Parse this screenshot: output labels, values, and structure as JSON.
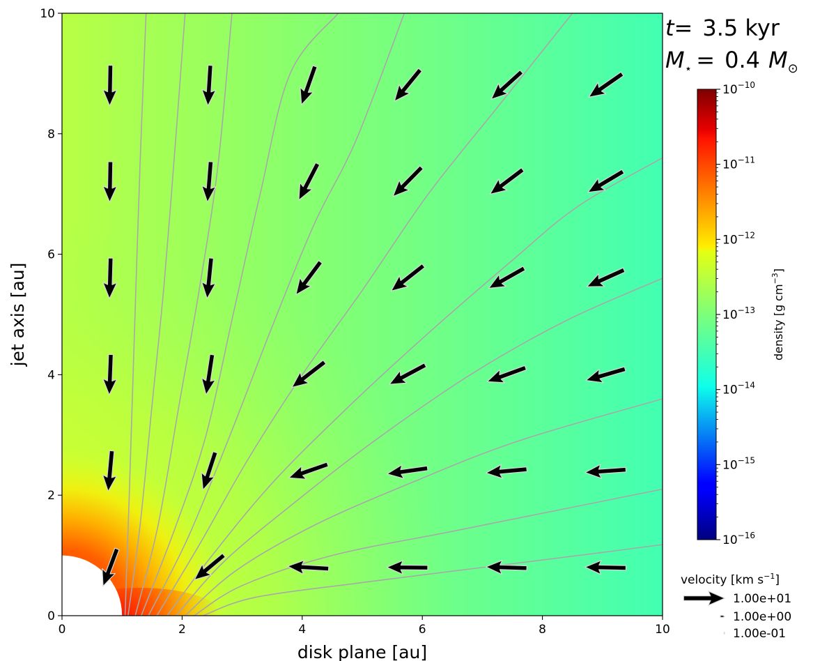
{
  "chart_data": {
    "type": "quiver-streamplot",
    "xlabel": "disk plane [au]",
    "ylabel": "jet axis [au]",
    "xlim": [
      0,
      10
    ],
    "ylim": [
      0,
      10
    ],
    "x_ticks": [
      0,
      2,
      4,
      6,
      8,
      10
    ],
    "y_ticks": [
      0,
      2,
      4,
      6,
      8,
      10
    ],
    "x_tick_labels": [
      "0",
      "2",
      "4",
      "6",
      "8",
      "10"
    ],
    "y_tick_labels": [
      "0",
      "2",
      "4",
      "6",
      "8",
      "10"
    ],
    "annotation_time": {
      "prefix": "t",
      "eq": "=",
      "value": "3.5 kyr"
    },
    "annotation_mass": {
      "prefix": "M",
      "sub": "⋆",
      "eq": "=",
      "value": "0.4",
      "unit": "M",
      "unit_sub": "⊙"
    },
    "colorbar": {
      "label_pre": "density [g cm",
      "label_sup": "−3",
      "label_post": "]",
      "scale": "log",
      "range_exp": [
        -16,
        -10
      ],
      "ticks": [
        {
          "exp": -10,
          "base": "10",
          "sup": "−10"
        },
        {
          "exp": -11,
          "base": "10",
          "sup": "−11"
        },
        {
          "exp": -12,
          "base": "10",
          "sup": "−12"
        },
        {
          "exp": -13,
          "base": "10",
          "sup": "−13"
        },
        {
          "exp": -14,
          "base": "10",
          "sup": "−14"
        },
        {
          "exp": -15,
          "base": "10",
          "sup": "−15"
        },
        {
          "exp": -16,
          "base": "10",
          "sup": "−16"
        }
      ],
      "colormap": "jet"
    },
    "density_field": {
      "inner_boundary_radius": 1.0,
      "background_log_density_range": [
        -13.7,
        -12.4
      ],
      "peak_log_density_near_disk": -11.3
    },
    "velocity_legend": {
      "title_pre": "velocity [km s",
      "title_sup": "−1",
      "title_post": "]",
      "entries": [
        {
          "value": 10.0,
          "label": "1.00e+01"
        },
        {
          "value": 1.0,
          "label": "1.00e+00"
        },
        {
          "value": 0.1,
          "label": "1.00e-01"
        }
      ]
    },
    "arrow_reference_length_au": 0.68,
    "arrow_reference_value": 10.0,
    "arrows": [
      {
        "x": 0.8,
        "y": 0.8,
        "u": -3.4,
        "v": -9.1
      },
      {
        "x": 0.8,
        "y": 2.4,
        "u": -0.9,
        "v": -9.9
      },
      {
        "x": 0.8,
        "y": 4.0,
        "u": -0.4,
        "v": -9.9
      },
      {
        "x": 0.8,
        "y": 5.6,
        "u": -0.3,
        "v": -9.9
      },
      {
        "x": 0.8,
        "y": 7.2,
        "u": -0.2,
        "v": -9.9
      },
      {
        "x": 0.8,
        "y": 8.8,
        "u": -0.2,
        "v": -9.9
      },
      {
        "x": 2.45,
        "y": 0.8,
        "u": -7.2,
        "v": -6.0
      },
      {
        "x": 2.45,
        "y": 2.4,
        "u": -3.0,
        "v": -9.2
      },
      {
        "x": 2.45,
        "y": 4.0,
        "u": -1.5,
        "v": -9.8
      },
      {
        "x": 2.45,
        "y": 5.6,
        "u": -1.0,
        "v": -9.9
      },
      {
        "x": 2.45,
        "y": 7.2,
        "u": -0.8,
        "v": -9.9
      },
      {
        "x": 2.45,
        "y": 8.8,
        "u": -0.6,
        "v": -9.9
      },
      {
        "x": 4.1,
        "y": 0.8,
        "u": -10.0,
        "v": 0.6
      },
      {
        "x": 4.1,
        "y": 2.4,
        "u": -9.5,
        "v": -3.3
      },
      {
        "x": 4.1,
        "y": 4.0,
        "u": -8.0,
        "v": -6.2
      },
      {
        "x": 4.1,
        "y": 5.6,
        "u": -6.0,
        "v": -8.0
      },
      {
        "x": 4.1,
        "y": 7.2,
        "u": -4.6,
        "v": -8.9
      },
      {
        "x": 4.1,
        "y": 8.8,
        "u": -3.3,
        "v": -9.4
      },
      {
        "x": 5.75,
        "y": 0.8,
        "u": -10.0,
        "v": 0.1
      },
      {
        "x": 5.75,
        "y": 2.4,
        "u": -9.9,
        "v": -1.4
      },
      {
        "x": 5.75,
        "y": 4.0,
        "u": -8.8,
        "v": -4.7
      },
      {
        "x": 5.75,
        "y": 5.6,
        "u": -7.9,
        "v": -6.2
      },
      {
        "x": 5.75,
        "y": 7.2,
        "u": -7.0,
        "v": -7.1
      },
      {
        "x": 5.75,
        "y": 8.8,
        "u": -6.3,
        "v": -7.7
      },
      {
        "x": 7.4,
        "y": 0.8,
        "u": -10.0,
        "v": 0.3
      },
      {
        "x": 7.4,
        "y": 2.4,
        "u": -10.0,
        "v": -0.9
      },
      {
        "x": 7.4,
        "y": 4.0,
        "u": -9.4,
        "v": -3.4
      },
      {
        "x": 7.4,
        "y": 5.6,
        "u": -8.7,
        "v": -4.9
      },
      {
        "x": 7.4,
        "y": 7.2,
        "u": -8.0,
        "v": -6.0
      },
      {
        "x": 7.4,
        "y": 8.8,
        "u": -7.4,
        "v": -6.7
      },
      {
        "x": 9.05,
        "y": 0.8,
        "u": -10.0,
        "v": 0.2
      },
      {
        "x": 9.05,
        "y": 2.4,
        "u": -10.0,
        "v": -0.7
      },
      {
        "x": 9.05,
        "y": 4.0,
        "u": -9.6,
        "v": -2.8
      },
      {
        "x": 9.05,
        "y": 5.6,
        "u": -9.1,
        "v": -4.1
      },
      {
        "x": 9.05,
        "y": 7.2,
        "u": -8.6,
        "v": -5.1
      },
      {
        "x": 9.05,
        "y": 8.8,
        "u": -8.2,
        "v": -5.7
      }
    ],
    "streamlines": [
      {
        "points": [
          [
            1.22,
            0.0
          ],
          [
            1.6,
            1.5
          ],
          [
            1.95,
            3.5
          ],
          [
            2.3,
            5.5
          ],
          [
            2.6,
            7.5
          ],
          [
            2.83,
            10.0
          ]
        ]
      },
      {
        "points": [
          [
            1.32,
            0.0
          ],
          [
            1.9,
            1.5
          ],
          [
            2.4,
            3.0
          ],
          [
            2.85,
            5.0
          ],
          [
            3.3,
            7.0
          ],
          [
            3.8,
            9.0
          ],
          [
            4.6,
            10.0
          ]
        ]
      },
      {
        "points": [
          [
            1.44,
            0.0
          ],
          [
            2.1,
            1.3
          ],
          [
            2.8,
            3.0
          ],
          [
            3.5,
            4.8
          ],
          [
            4.2,
            6.5
          ],
          [
            4.9,
            7.9
          ],
          [
            5.7,
            10.0
          ]
        ]
      },
      {
        "points": [
          [
            1.58,
            0.0
          ],
          [
            2.3,
            1.2
          ],
          [
            3.1,
            2.6
          ],
          [
            4.0,
            4.0
          ],
          [
            5.0,
            5.4
          ],
          [
            6.1,
            7.0
          ],
          [
            7.3,
            8.5
          ],
          [
            8.5,
            10.0
          ]
        ]
      },
      {
        "points": [
          [
            1.75,
            0.0
          ],
          [
            2.5,
            1.0
          ],
          [
            3.5,
            2.2
          ],
          [
            4.7,
            3.4
          ],
          [
            6.0,
            4.6
          ],
          [
            7.5,
            5.9
          ],
          [
            8.6,
            6.8
          ],
          [
            10.0,
            7.6
          ]
        ]
      },
      {
        "points": [
          [
            1.9,
            0.0
          ],
          [
            2.7,
            0.9
          ],
          [
            3.9,
            1.9
          ],
          [
            5.2,
            2.9
          ],
          [
            6.8,
            4.0
          ],
          [
            8.4,
            4.9
          ],
          [
            10.0,
            5.6
          ]
        ]
      },
      {
        "points": [
          [
            2.05,
            0.0
          ],
          [
            2.9,
            0.75
          ],
          [
            4.2,
            1.5
          ],
          [
            5.8,
            2.2
          ],
          [
            7.6,
            2.9
          ],
          [
            10.0,
            3.6
          ]
        ]
      },
      {
        "points": [
          [
            2.2,
            0.0
          ],
          [
            3.0,
            0.5
          ],
          [
            4.5,
            1.0
          ],
          [
            6.5,
            1.4
          ],
          [
            8.5,
            1.8
          ],
          [
            10.0,
            2.1
          ]
        ]
      },
      {
        "points": [
          [
            2.35,
            0.0
          ],
          [
            3.2,
            0.3
          ],
          [
            5.0,
            0.55
          ],
          [
            7.0,
            0.8
          ],
          [
            9.0,
            1.05
          ],
          [
            10.0,
            1.18
          ]
        ]
      },
      {
        "points": [
          [
            1.1,
            0.0
          ],
          [
            1.3,
            1.5
          ],
          [
            1.5,
            3.5
          ],
          [
            1.7,
            5.5
          ],
          [
            1.9,
            8.0
          ],
          [
            2.05,
            10.0
          ]
        ]
      },
      {
        "points": [
          [
            1.05,
            0.0
          ],
          [
            1.12,
            2.0
          ],
          [
            1.2,
            4.5
          ],
          [
            1.3,
            7.5
          ],
          [
            1.4,
            10.0
          ]
        ]
      }
    ]
  }
}
